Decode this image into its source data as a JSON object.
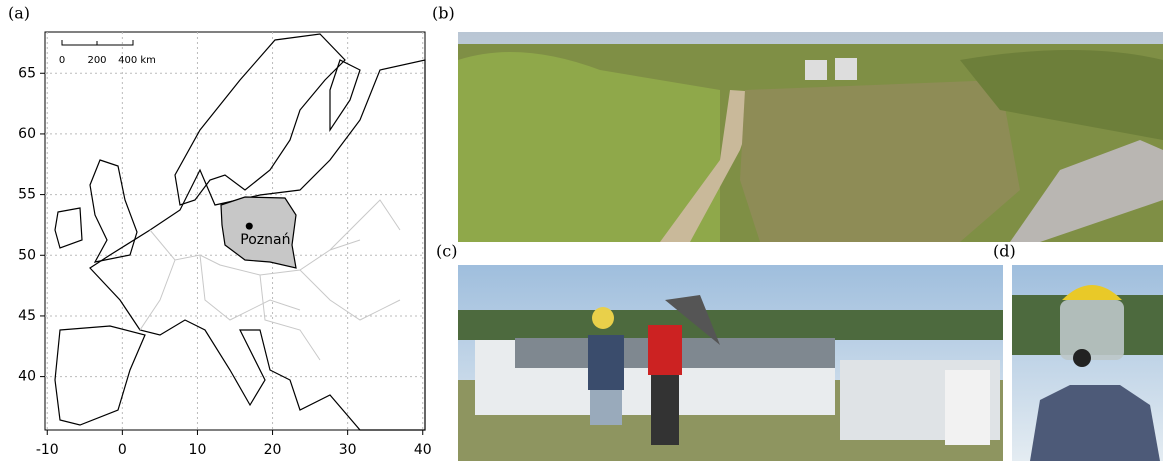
{
  "map": {
    "panel_label": "(a)",
    "xlim": [
      -10.3,
      40.3
    ],
    "ylim": [
      35.6,
      68.4
    ],
    "xticks": [
      -10,
      0,
      10,
      20,
      30,
      40
    ],
    "yticks": [
      40,
      45,
      50,
      55,
      60,
      65
    ],
    "scale_bar": {
      "labels": [
        "0",
        "200",
        "400 km"
      ]
    },
    "city": {
      "label": "Poznań",
      "lon": 16.9,
      "lat": 52.4
    }
  },
  "photos": [
    {
      "panel_label": "(b)"
    },
    {
      "panel_label": "(c)"
    },
    {
      "panel_label": "(d)"
    }
  ]
}
